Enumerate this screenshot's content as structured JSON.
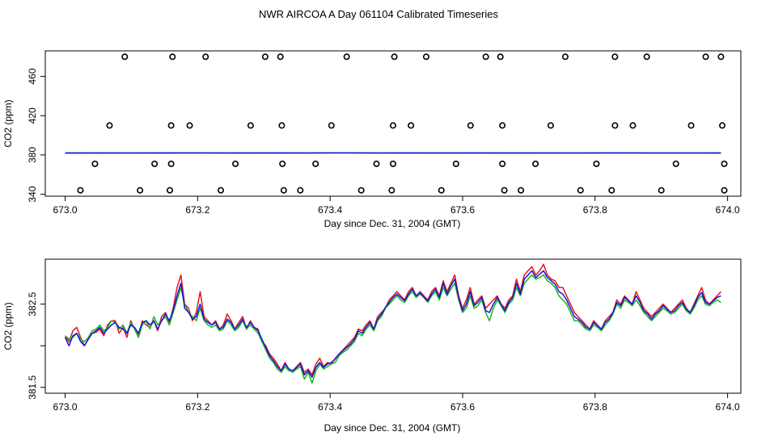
{
  "figure": {
    "title": "NWR AIRCOA A  Day 061104  Calibrated Timeseries"
  },
  "colors": {
    "frame": "#000000",
    "red": "#e8141a",
    "green": "#18b818",
    "blue": "#1414e6",
    "points": "#000000"
  },
  "chart_data": [
    {
      "type": "scatter",
      "title": "",
      "xlabel": "Day since Dec. 31, 2004 (GMT)",
      "ylabel": "CO2 (ppm)",
      "xlim": [
        672.97,
        674.02
      ],
      "ylim": [
        338,
        486
      ],
      "xticks": [
        673.0,
        673.2,
        673.4,
        673.6,
        673.8,
        674.0
      ],
      "xtick_labels": [
        "673.0",
        "673.2",
        "673.4",
        "673.6",
        "673.8",
        "674.0"
      ],
      "yticks": [
        340,
        380,
        420,
        460
      ],
      "ytick_labels": [
        "340",
        "380",
        "420",
        "460"
      ],
      "points": [
        {
          "x": 673.09,
          "y": 480
        },
        {
          "x": 673.162,
          "y": 480
        },
        {
          "x": 673.212,
          "y": 480
        },
        {
          "x": 673.302,
          "y": 480
        },
        {
          "x": 673.325,
          "y": 480
        },
        {
          "x": 673.425,
          "y": 480
        },
        {
          "x": 673.497,
          "y": 480
        },
        {
          "x": 673.545,
          "y": 480
        },
        {
          "x": 673.635,
          "y": 480
        },
        {
          "x": 673.657,
          "y": 480
        },
        {
          "x": 673.755,
          "y": 480
        },
        {
          "x": 673.83,
          "y": 480
        },
        {
          "x": 673.878,
          "y": 480
        },
        {
          "x": 673.967,
          "y": 480
        },
        {
          "x": 673.99,
          "y": 480
        },
        {
          "x": 673.067,
          "y": 410
        },
        {
          "x": 673.16,
          "y": 410
        },
        {
          "x": 673.188,
          "y": 410
        },
        {
          "x": 673.28,
          "y": 410
        },
        {
          "x": 673.327,
          "y": 410
        },
        {
          "x": 673.402,
          "y": 410
        },
        {
          "x": 673.495,
          "y": 410
        },
        {
          "x": 673.522,
          "y": 410
        },
        {
          "x": 673.612,
          "y": 410
        },
        {
          "x": 673.66,
          "y": 410
        },
        {
          "x": 673.733,
          "y": 410
        },
        {
          "x": 673.83,
          "y": 410
        },
        {
          "x": 673.857,
          "y": 410
        },
        {
          "x": 673.945,
          "y": 410
        },
        {
          "x": 673.992,
          "y": 410
        },
        {
          "x": 673.045,
          "y": 371
        },
        {
          "x": 673.135,
          "y": 371
        },
        {
          "x": 673.16,
          "y": 371
        },
        {
          "x": 673.257,
          "y": 371
        },
        {
          "x": 673.328,
          "y": 371
        },
        {
          "x": 673.378,
          "y": 371
        },
        {
          "x": 673.47,
          "y": 371
        },
        {
          "x": 673.495,
          "y": 371
        },
        {
          "x": 673.59,
          "y": 371
        },
        {
          "x": 673.66,
          "y": 371
        },
        {
          "x": 673.71,
          "y": 371
        },
        {
          "x": 673.802,
          "y": 371
        },
        {
          "x": 673.922,
          "y": 371
        },
        {
          "x": 673.995,
          "y": 371
        },
        {
          "x": 673.023,
          "y": 344
        },
        {
          "x": 673.113,
          "y": 344
        },
        {
          "x": 673.158,
          "y": 344
        },
        {
          "x": 673.235,
          "y": 344
        },
        {
          "x": 673.33,
          "y": 344
        },
        {
          "x": 673.355,
          "y": 344
        },
        {
          "x": 673.447,
          "y": 344
        },
        {
          "x": 673.493,
          "y": 344
        },
        {
          "x": 673.568,
          "y": 344
        },
        {
          "x": 673.663,
          "y": 344
        },
        {
          "x": 673.688,
          "y": 344
        },
        {
          "x": 673.778,
          "y": 344
        },
        {
          "x": 673.825,
          "y": 344
        },
        {
          "x": 673.9,
          "y": 344
        },
        {
          "x": 673.995,
          "y": 344
        }
      ],
      "series": [
        {
          "name": "red",
          "x_start": 673.0,
          "x_end": 673.99,
          "values": [
            382.0,
            382.1,
            382.1,
            382.0,
            382.2,
            382.1,
            382.0,
            382.1,
            382.2,
            382.1,
            382.0,
            382.1,
            382.0,
            382.0,
            382.1,
            382.1,
            382.1,
            382.1,
            382.1,
            382.1
          ]
        },
        {
          "name": "green",
          "x_start": 673.0,
          "x_end": 673.99,
          "values": [
            382.0,
            382.0,
            382.1,
            382.0,
            382.1,
            382.0,
            382.0,
            382.1,
            382.1,
            382.1,
            382.0,
            382.0,
            382.0,
            382.0,
            382.0,
            382.1,
            382.0,
            382.1,
            382.1,
            382.0
          ]
        },
        {
          "name": "blue",
          "x_start": 673.0,
          "x_end": 673.99,
          "values": [
            382.0,
            382.0,
            382.0,
            382.1,
            382.0,
            382.0,
            382.1,
            382.0,
            382.1,
            382.0,
            382.1,
            382.0,
            382.1,
            382.0,
            382.0,
            382.0,
            382.1,
            382.0,
            382.0,
            382.0
          ]
        }
      ]
    },
    {
      "type": "line",
      "title": "",
      "xlabel": "Day since Dec. 31, 2004 (GMT)",
      "ylabel": "CO2 (ppm)",
      "xlim": [
        672.97,
        674.02
      ],
      "ylim": [
        381.43,
        383.04
      ],
      "xticks": [
        673.0,
        673.2,
        673.4,
        673.6,
        673.8,
        674.0
      ],
      "xtick_labels": [
        "673.0",
        "673.2",
        "673.4",
        "673.6",
        "673.8",
        "674.0"
      ],
      "yticks": [
        381.5,
        382.0,
        382.5
      ],
      "ytick_labels": [
        "381.5",
        "",
        "382.5"
      ],
      "series": [
        {
          "name": "red",
          "x_start": 673.0,
          "x_end": 673.99,
          "values": [
            382.12,
            382.05,
            382.18,
            382.22,
            382.1,
            382.0,
            382.08,
            382.15,
            382.16,
            382.2,
            382.12,
            382.25,
            382.3,
            382.3,
            382.15,
            382.22,
            382.1,
            382.3,
            382.2,
            382.12,
            382.3,
            382.25,
            382.22,
            382.3,
            382.18,
            382.35,
            382.4,
            382.28,
            382.45,
            382.7,
            382.85,
            382.5,
            382.45,
            382.3,
            382.4,
            382.65,
            382.35,
            382.3,
            382.25,
            382.3,
            382.2,
            382.25,
            382.38,
            382.3,
            382.2,
            382.28,
            382.35,
            382.2,
            382.3,
            382.22,
            382.2,
            382.05,
            382.0,
            381.9,
            381.85,
            381.78,
            381.7,
            381.8,
            381.72,
            381.7,
            381.75,
            381.8,
            381.68,
            381.72,
            381.65,
            381.78,
            381.85,
            381.75,
            381.8,
            381.78,
            381.85,
            381.9,
            381.95,
            382.0,
            382.05,
            382.1,
            382.2,
            382.18,
            382.25,
            382.3,
            382.2,
            382.35,
            382.4,
            382.45,
            382.55,
            382.6,
            382.65,
            382.6,
            382.55,
            382.65,
            382.7,
            382.6,
            382.65,
            382.6,
            382.55,
            382.65,
            382.7,
            382.6,
            382.78,
            382.65,
            382.75,
            382.85,
            382.6,
            382.45,
            382.55,
            382.7,
            382.5,
            382.55,
            382.6,
            382.45,
            382.5,
            382.55,
            382.6,
            382.5,
            382.45,
            382.55,
            382.6,
            382.8,
            382.65,
            382.85,
            382.9,
            382.95,
            382.85,
            382.9,
            382.98,
            382.85,
            382.8,
            382.78,
            382.7,
            382.7,
            382.6,
            382.5,
            382.4,
            382.35,
            382.3,
            382.25,
            382.2,
            382.3,
            382.25,
            382.2,
            382.3,
            382.35,
            382.4,
            382.55,
            382.5,
            382.6,
            382.55,
            382.5,
            382.65,
            382.55,
            382.45,
            382.4,
            382.35,
            382.4,
            382.45,
            382.5,
            382.45,
            382.4,
            382.45,
            382.5,
            382.55,
            382.45,
            382.4,
            382.5,
            382.6,
            382.7,
            382.55,
            382.5,
            382.55,
            382.6,
            382.65
          ]
        },
        {
          "name": "green",
          "x_start": 673.0,
          "x_end": 673.99,
          "values": [
            382.12,
            382.08,
            382.1,
            382.15,
            382.08,
            382.05,
            382.1,
            382.18,
            382.2,
            382.25,
            382.18,
            382.22,
            382.3,
            382.28,
            382.2,
            382.25,
            382.15,
            382.28,
            382.2,
            382.1,
            382.25,
            382.3,
            382.2,
            382.35,
            382.25,
            382.3,
            382.35,
            382.25,
            382.4,
            382.55,
            382.7,
            382.5,
            382.4,
            382.35,
            382.3,
            382.45,
            382.3,
            382.25,
            382.22,
            382.25,
            382.18,
            382.2,
            382.3,
            382.25,
            382.18,
            382.22,
            382.3,
            382.2,
            382.25,
            382.2,
            382.15,
            382.05,
            381.95,
            381.85,
            381.8,
            381.72,
            381.68,
            381.75,
            381.7,
            381.68,
            381.72,
            381.75,
            381.6,
            381.68,
            381.55,
            381.7,
            381.78,
            381.72,
            381.75,
            381.78,
            381.8,
            381.88,
            381.92,
            381.95,
            382.0,
            382.05,
            382.15,
            382.12,
            382.2,
            382.25,
            382.18,
            382.3,
            382.35,
            382.45,
            382.5,
            382.55,
            382.6,
            382.55,
            382.52,
            382.6,
            382.65,
            382.58,
            382.62,
            382.58,
            382.52,
            382.6,
            382.65,
            382.55,
            382.7,
            382.6,
            382.68,
            382.75,
            382.55,
            382.4,
            382.45,
            382.6,
            382.45,
            382.48,
            382.55,
            382.4,
            382.3,
            382.45,
            382.55,
            382.48,
            382.4,
            382.5,
            382.55,
            382.7,
            382.6,
            382.75,
            382.8,
            382.85,
            382.8,
            382.82,
            382.85,
            382.78,
            382.75,
            382.7,
            382.6,
            382.55,
            382.5,
            382.4,
            382.3,
            382.3,
            382.25,
            382.2,
            382.18,
            382.25,
            382.22,
            382.18,
            382.25,
            382.3,
            382.38,
            382.5,
            382.45,
            382.55,
            382.52,
            382.48,
            382.55,
            382.48,
            382.4,
            382.35,
            382.3,
            382.35,
            382.4,
            382.45,
            382.42,
            382.38,
            382.4,
            382.45,
            382.5,
            382.42,
            382.38,
            382.45,
            382.55,
            382.6,
            382.5,
            382.48,
            382.52,
            382.55,
            382.52
          ]
        },
        {
          "name": "blue",
          "x_start": 673.0,
          "x_end": 673.99,
          "values": [
            382.1,
            382.0,
            382.12,
            382.15,
            382.05,
            382.0,
            382.08,
            382.15,
            382.18,
            382.22,
            382.15,
            382.2,
            382.25,
            382.28,
            382.22,
            382.2,
            382.15,
            382.25,
            382.22,
            382.15,
            382.28,
            382.3,
            382.25,
            382.3,
            382.2,
            382.3,
            382.38,
            382.3,
            382.42,
            382.6,
            382.75,
            382.45,
            382.4,
            382.32,
            382.35,
            382.5,
            382.32,
            382.28,
            382.25,
            382.28,
            382.2,
            382.22,
            382.32,
            382.28,
            382.2,
            382.25,
            382.32,
            382.22,
            382.28,
            382.22,
            382.18,
            382.08,
            381.98,
            381.88,
            381.82,
            381.75,
            381.7,
            381.78,
            381.72,
            381.7,
            381.74,
            381.78,
            381.65,
            381.7,
            381.62,
            381.74,
            381.8,
            381.74,
            381.78,
            381.8,
            381.84,
            381.9,
            381.94,
            381.98,
            382.02,
            382.08,
            382.18,
            382.15,
            382.22,
            382.28,
            382.2,
            382.32,
            382.38,
            382.46,
            382.52,
            382.58,
            382.62,
            382.58,
            382.54,
            382.62,
            382.68,
            382.6,
            382.64,
            382.58,
            382.54,
            382.62,
            382.68,
            382.58,
            382.75,
            382.62,
            382.72,
            382.8,
            382.58,
            382.42,
            382.5,
            382.65,
            382.48,
            382.52,
            382.58,
            382.42,
            382.4,
            382.5,
            382.58,
            382.5,
            382.42,
            382.52,
            382.58,
            382.75,
            382.62,
            382.8,
            382.85,
            382.9,
            382.82,
            382.86,
            382.9,
            382.82,
            382.78,
            382.74,
            382.65,
            382.62,
            382.55,
            382.45,
            382.35,
            382.32,
            382.28,
            382.22,
            382.2,
            382.28,
            382.24,
            382.2,
            382.28,
            382.32,
            382.4,
            382.52,
            382.48,
            382.58,
            382.54,
            382.5,
            382.6,
            382.52,
            382.42,
            382.38,
            382.32,
            382.38,
            382.42,
            382.48,
            382.44,
            382.4,
            382.42,
            382.48,
            382.52,
            382.44,
            382.4,
            382.48,
            382.58,
            382.64,
            382.52,
            382.5,
            382.54,
            382.58,
            382.6
          ]
        }
      ]
    }
  ]
}
